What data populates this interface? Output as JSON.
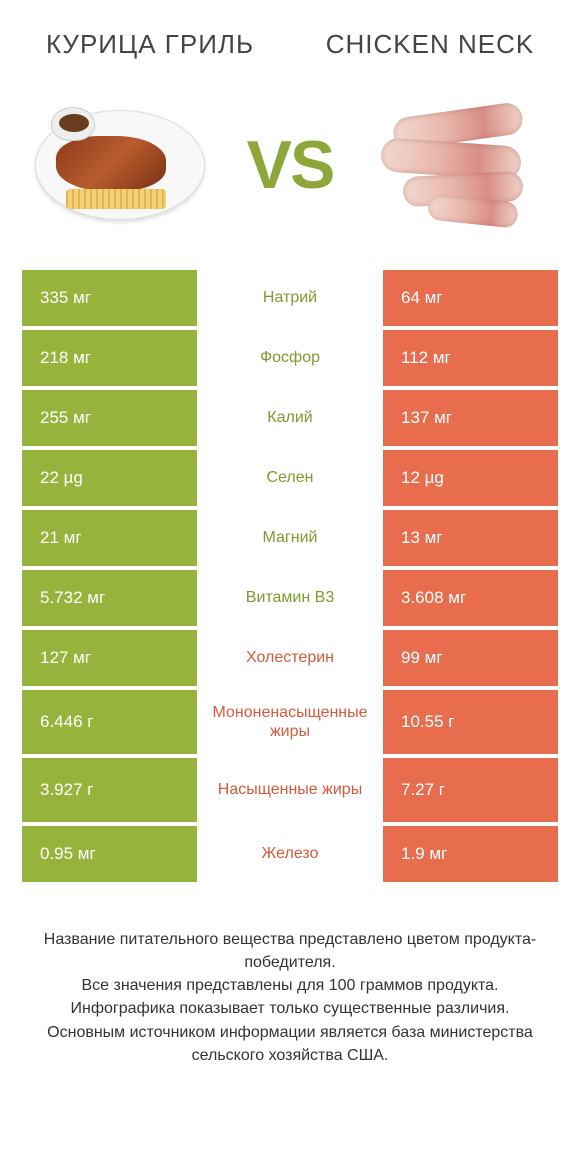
{
  "colors": {
    "green": "#96b43c",
    "orange": "#e86d4f",
    "mid_green": "#7f9a2e",
    "mid_orange": "#d45a3c"
  },
  "left_title": "Курица гриль",
  "right_title": "Chicken neck",
  "vs_label": "VS",
  "rows": [
    {
      "left": "335 мг",
      "label": "Натрий",
      "right": "64 мг",
      "winner": "left",
      "tall": false
    },
    {
      "left": "218 мг",
      "label": "Фосфор",
      "right": "112 мг",
      "winner": "left",
      "tall": false
    },
    {
      "left": "255 мг",
      "label": "Калий",
      "right": "137 мг",
      "winner": "left",
      "tall": false
    },
    {
      "left": "22 µg",
      "label": "Селен",
      "right": "12 µg",
      "winner": "left",
      "tall": false
    },
    {
      "left": "21 мг",
      "label": "Магний",
      "right": "13 мг",
      "winner": "left",
      "tall": false
    },
    {
      "left": "5.732 мг",
      "label": "Витамин B3",
      "right": "3.608 мг",
      "winner": "left",
      "tall": false
    },
    {
      "left": "127 мг",
      "label": "Холестерин",
      "right": "99 мг",
      "winner": "right",
      "tall": false
    },
    {
      "left": "6.446 г",
      "label": "Мононенасыщенные жиры",
      "right": "10.55 г",
      "winner": "right",
      "tall": true
    },
    {
      "left": "3.927 г",
      "label": "Насыщенные жиры",
      "right": "7.27 г",
      "winner": "right",
      "tall": true
    },
    {
      "left": "0.95 мг",
      "label": "Железо",
      "right": "1.9 мг",
      "winner": "right",
      "tall": false
    }
  ],
  "footer_lines": [
    "Название питательного вещества представлено цветом продукта-победителя.",
    "Все значения представлены для 100 граммов продукта.",
    "Инфографика показывает только существенные различия.",
    "Основным источником информации является база министерства сельского хозяйства США."
  ]
}
